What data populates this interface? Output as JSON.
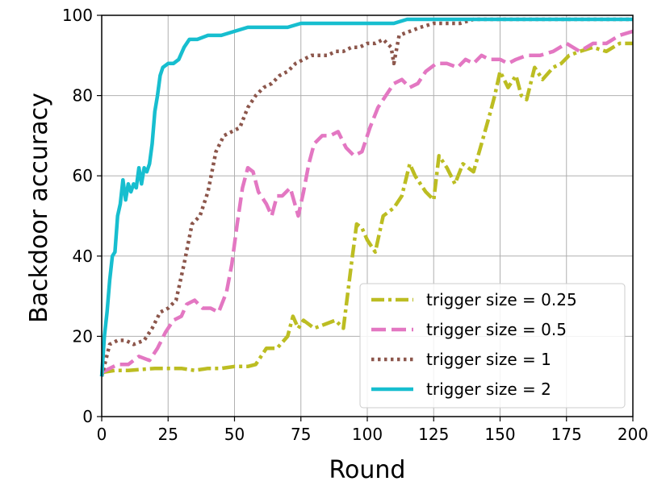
{
  "chart_data": {
    "type": "line",
    "title": "",
    "xlabel": "Round",
    "ylabel": "Backdoor accuracy",
    "xlim": [
      0,
      200
    ],
    "ylim": [
      0,
      100
    ],
    "xticks": [
      0,
      25,
      50,
      75,
      100,
      125,
      150,
      175,
      200
    ],
    "yticks": [
      0,
      20,
      40,
      60,
      80,
      100
    ],
    "grid": true,
    "legend_position": "lower-right",
    "series": [
      {
        "name": "trigger size = 0.25",
        "color": "#bcbd22",
        "dash": "dashdot",
        "points": [
          [
            0,
            11
          ],
          [
            5,
            11.5
          ],
          [
            10,
            11.5
          ],
          [
            20,
            12
          ],
          [
            30,
            12
          ],
          [
            35,
            11.5
          ],
          [
            40,
            12
          ],
          [
            45,
            12
          ],
          [
            50,
            12.5
          ],
          [
            55,
            12.5
          ],
          [
            58,
            13
          ],
          [
            62,
            17
          ],
          [
            66,
            17
          ],
          [
            70,
            20
          ],
          [
            72,
            25
          ],
          [
            74,
            22
          ],
          [
            76,
            24
          ],
          [
            80,
            22
          ],
          [
            84,
            23
          ],
          [
            88,
            24
          ],
          [
            91,
            22
          ],
          [
            94,
            38
          ],
          [
            96,
            48
          ],
          [
            98,
            47
          ],
          [
            100,
            44
          ],
          [
            103,
            41
          ],
          [
            106,
            50
          ],
          [
            110,
            52
          ],
          [
            113,
            55
          ],
          [
            116,
            63
          ],
          [
            118,
            60
          ],
          [
            120,
            58
          ],
          [
            122,
            56
          ],
          [
            125,
            54
          ],
          [
            127,
            65
          ],
          [
            130,
            62
          ],
          [
            133,
            58
          ],
          [
            136,
            63
          ],
          [
            140,
            61
          ],
          [
            143,
            68
          ],
          [
            146,
            75
          ],
          [
            148,
            80
          ],
          [
            150,
            86
          ],
          [
            153,
            82
          ],
          [
            156,
            85
          ],
          [
            158,
            80
          ],
          [
            160,
            79
          ],
          [
            163,
            87
          ],
          [
            166,
            84
          ],
          [
            170,
            87
          ],
          [
            173,
            88
          ],
          [
            176,
            90
          ],
          [
            180,
            91
          ],
          [
            185,
            92
          ],
          [
            190,
            91
          ],
          [
            195,
            93
          ],
          [
            200,
            93
          ]
        ]
      },
      {
        "name": "trigger size = 0.5",
        "color": "#e377c2",
        "dash": "dashed",
        "points": [
          [
            0,
            11
          ],
          [
            3,
            12
          ],
          [
            6,
            13
          ],
          [
            10,
            13
          ],
          [
            14,
            15
          ],
          [
            18,
            14
          ],
          [
            21,
            17
          ],
          [
            24,
            21
          ],
          [
            27,
            24
          ],
          [
            30,
            25
          ],
          [
            32,
            28
          ],
          [
            35,
            29
          ],
          [
            38,
            27
          ],
          [
            41,
            27
          ],
          [
            44,
            26
          ],
          [
            47,
            31
          ],
          [
            49,
            38
          ],
          [
            51,
            48
          ],
          [
            53,
            57
          ],
          [
            55,
            62
          ],
          [
            57,
            61
          ],
          [
            59,
            56
          ],
          [
            62,
            53
          ],
          [
            64,
            50
          ],
          [
            66,
            55
          ],
          [
            68,
            55
          ],
          [
            71,
            57
          ],
          [
            74,
            50
          ],
          [
            76,
            56
          ],
          [
            78,
            63
          ],
          [
            80,
            68
          ],
          [
            83,
            70
          ],
          [
            86,
            70
          ],
          [
            89,
            71
          ],
          [
            92,
            67
          ],
          [
            95,
            65
          ],
          [
            98,
            66
          ],
          [
            101,
            72
          ],
          [
            104,
            77
          ],
          [
            107,
            80
          ],
          [
            110,
            83
          ],
          [
            113,
            84
          ],
          [
            116,
            82
          ],
          [
            119,
            83
          ],
          [
            122,
            86
          ],
          [
            126,
            88
          ],
          [
            130,
            88
          ],
          [
            134,
            87
          ],
          [
            137,
            89
          ],
          [
            140,
            88
          ],
          [
            143,
            90
          ],
          [
            146,
            89
          ],
          [
            150,
            89
          ],
          [
            153,
            88
          ],
          [
            156,
            89
          ],
          [
            160,
            90
          ],
          [
            165,
            90
          ],
          [
            170,
            91
          ],
          [
            175,
            93
          ],
          [
            180,
            91
          ],
          [
            185,
            93
          ],
          [
            190,
            93
          ],
          [
            195,
            95
          ],
          [
            200,
            96
          ]
        ]
      },
      {
        "name": "trigger size = 1",
        "color": "#8c564b",
        "dash": "dotted",
        "points": [
          [
            0,
            10
          ],
          [
            3,
            18
          ],
          [
            6,
            19
          ],
          [
            9,
            19
          ],
          [
            12,
            18
          ],
          [
            16,
            19
          ],
          [
            19,
            22
          ],
          [
            22,
            26
          ],
          [
            25,
            27
          ],
          [
            28,
            29
          ],
          [
            31,
            38
          ],
          [
            34,
            48
          ],
          [
            37,
            50
          ],
          [
            40,
            56
          ],
          [
            43,
            66
          ],
          [
            46,
            70
          ],
          [
            49,
            71
          ],
          [
            52,
            72
          ],
          [
            55,
            77
          ],
          [
            58,
            80
          ],
          [
            61,
            82
          ],
          [
            64,
            83
          ],
          [
            67,
            85
          ],
          [
            70,
            86
          ],
          [
            73,
            88
          ],
          [
            76,
            89
          ],
          [
            79,
            90
          ],
          [
            82,
            90
          ],
          [
            85,
            90
          ],
          [
            88,
            91
          ],
          [
            91,
            91
          ],
          [
            94,
            92
          ],
          [
            97,
            92
          ],
          [
            100,
            93
          ],
          [
            103,
            93
          ],
          [
            106,
            94
          ],
          [
            109,
            92
          ],
          [
            110,
            88
          ],
          [
            112,
            95
          ],
          [
            116,
            96
          ],
          [
            120,
            97
          ],
          [
            125,
            98
          ],
          [
            130,
            98
          ],
          [
            135,
            98
          ],
          [
            140,
            99
          ],
          [
            145,
            99
          ],
          [
            150,
            99
          ],
          [
            155,
            99
          ],
          [
            160,
            99
          ],
          [
            165,
            99
          ],
          [
            170,
            99
          ],
          [
            175,
            99
          ],
          [
            180,
            99
          ],
          [
            185,
            99
          ],
          [
            190,
            99
          ],
          [
            195,
            99
          ],
          [
            200,
            99
          ]
        ]
      },
      {
        "name": "trigger size = 2",
        "color": "#17becf",
        "dash": "solid",
        "points": [
          [
            0,
            10
          ],
          [
            1,
            20
          ],
          [
            2,
            26
          ],
          [
            3,
            34
          ],
          [
            4,
            40
          ],
          [
            5,
            41
          ],
          [
            6,
            50
          ],
          [
            7,
            53
          ],
          [
            8,
            59
          ],
          [
            9,
            54
          ],
          [
            10,
            58
          ],
          [
            11,
            56
          ],
          [
            12,
            58
          ],
          [
            13,
            57
          ],
          [
            14,
            62
          ],
          [
            15,
            58
          ],
          [
            16,
            62
          ],
          [
            17,
            61
          ],
          [
            18,
            63
          ],
          [
            19,
            68
          ],
          [
            20,
            76
          ],
          [
            21,
            80
          ],
          [
            22,
            85
          ],
          [
            23,
            87
          ],
          [
            25,
            88
          ],
          [
            27,
            88
          ],
          [
            29,
            89
          ],
          [
            31,
            92
          ],
          [
            33,
            94
          ],
          [
            36,
            94
          ],
          [
            40,
            95
          ],
          [
            45,
            95
          ],
          [
            50,
            96
          ],
          [
            55,
            97
          ],
          [
            60,
            97
          ],
          [
            65,
            97
          ],
          [
            70,
            97
          ],
          [
            75,
            98
          ],
          [
            80,
            98
          ],
          [
            85,
            98
          ],
          [
            90,
            98
          ],
          [
            95,
            98
          ],
          [
            100,
            98
          ],
          [
            105,
            98
          ],
          [
            110,
            98
          ],
          [
            115,
            99
          ],
          [
            120,
            99
          ],
          [
            125,
            99
          ],
          [
            130,
            99
          ],
          [
            140,
            99
          ],
          [
            150,
            99
          ],
          [
            160,
            99
          ],
          [
            170,
            99
          ],
          [
            180,
            99
          ],
          [
            190,
            99
          ],
          [
            200,
            99
          ]
        ]
      }
    ]
  }
}
